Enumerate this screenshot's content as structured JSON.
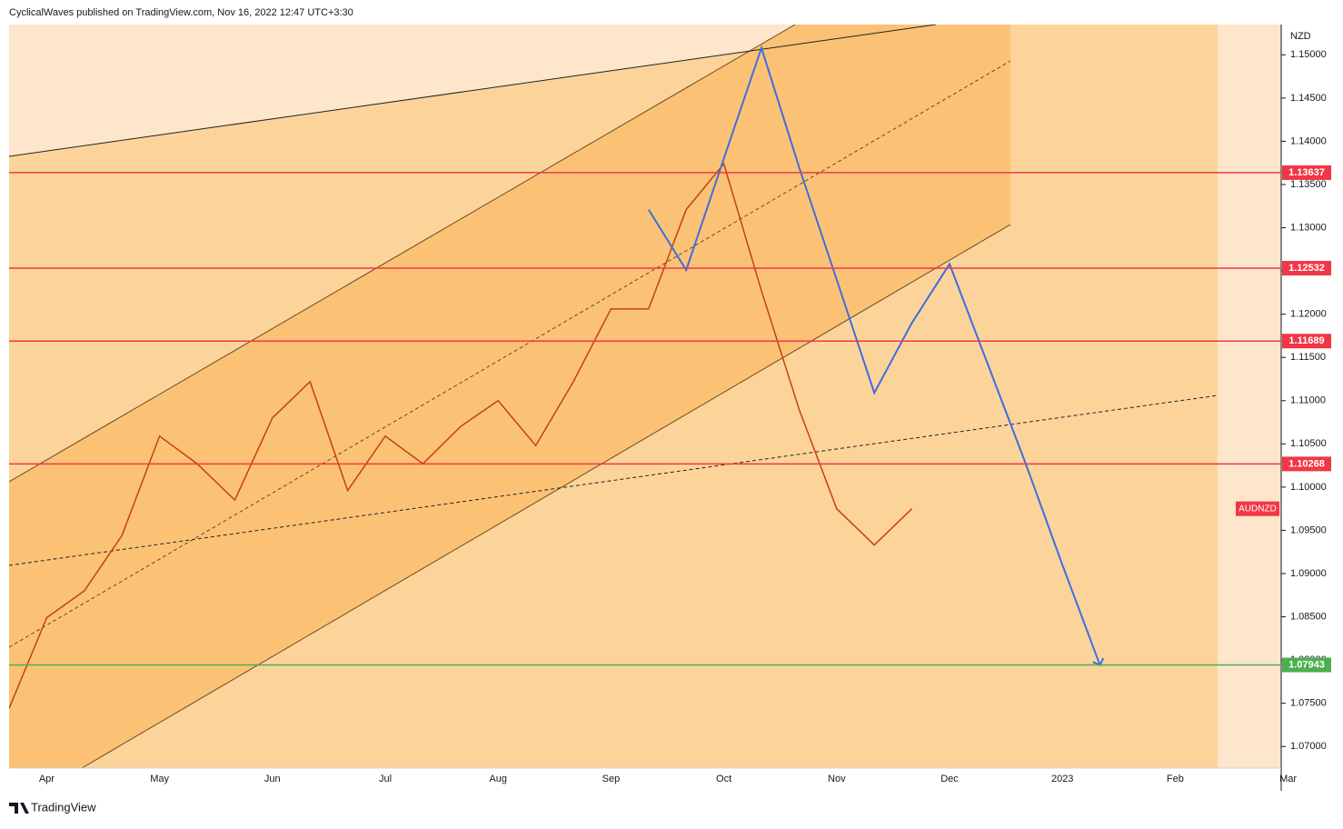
{
  "chart_data": {
    "type": "line",
    "title": "CyclicalWaves published on TradingView.com, Nov 16, 2022 12:47 UTC+3:30",
    "y_label": "NZD",
    "symbol": "AUDNZD",
    "footer": "TradingView",
    "categories": [
      null,
      "Apr",
      null,
      null,
      "May",
      null,
      null,
      "Jun",
      null,
      null,
      "Jul",
      null,
      null,
      "Aug",
      null,
      null,
      "Sep",
      null,
      null,
      "Oct",
      null,
      null,
      "Nov",
      null,
      null,
      "Dec",
      null,
      null,
      "2023",
      null,
      null,
      "Feb",
      null,
      null,
      "Mar"
    ],
    "series": [
      {
        "name": "AUDNZD",
        "color": "#c4420c",
        "values": [
          1.0744,
          1.0849,
          1.088,
          1.0944,
          1.1059,
          1.1027,
          1.0985,
          1.108,
          1.1122,
          1.0996,
          1.1059,
          1.1027,
          1.107,
          1.11,
          1.1048,
          1.1122,
          1.1206,
          1.1206,
          1.1321,
          1.1374,
          1.1227,
          1.109,
          1.0975,
          1.0933,
          1.0975,
          null,
          null,
          null,
          null,
          null,
          null,
          null,
          null,
          null,
          null
        ]
      },
      {
        "name": "Projection",
        "color": "#3c6ee0",
        "values": [
          null,
          null,
          null,
          null,
          null,
          null,
          null,
          null,
          null,
          null,
          null,
          null,
          null,
          null,
          null,
          null,
          null,
          1.1321,
          1.1251,
          1.138,
          1.1508,
          1.137,
          1.124,
          1.1109,
          1.119,
          1.1258,
          1.1144,
          1.103,
          1.091,
          1.0794,
          null,
          null,
          null,
          null,
          null
        ]
      }
    ],
    "levels": [
      {
        "value": 1.13637,
        "color": "#f23645"
      },
      {
        "value": 1.12532,
        "color": "#f23645"
      },
      {
        "value": 1.11689,
        "color": "#f23645"
      },
      {
        "value": 1.10268,
        "color": "#f23645"
      },
      {
        "value": 1.07943,
        "color": "#4caf50"
      }
    ],
    "ylim": [
      1.0675,
      1.1535
    ],
    "yticks": [
      {
        "value": 1.07,
        "label": "1.07000"
      },
      {
        "value": 1.075,
        "label": "1.07500"
      },
      {
        "value": 1.08,
        "label": "1.08000"
      },
      {
        "value": 1.085,
        "label": "1.08500"
      },
      {
        "value": 1.09,
        "label": "1.09000"
      },
      {
        "value": 1.095,
        "label": "1.09500"
      },
      {
        "value": 1.1,
        "label": "1.10000"
      },
      {
        "value": 1.105,
        "label": "1.10500"
      },
      {
        "value": 1.11,
        "label": "1.11000"
      },
      {
        "value": 1.115,
        "label": "1.11500"
      },
      {
        "value": 1.12,
        "label": "1.12000"
      },
      {
        "value": 1.125,
        "label": "1.12500"
      },
      {
        "value": 1.13,
        "label": "1.13000"
      },
      {
        "value": 1.135,
        "label": "1.13500"
      },
      {
        "value": 1.14,
        "label": "1.14000"
      },
      {
        "value": 1.145,
        "label": "1.14500"
      },
      {
        "value": 1.15,
        "label": "1.15000"
      }
    ]
  }
}
